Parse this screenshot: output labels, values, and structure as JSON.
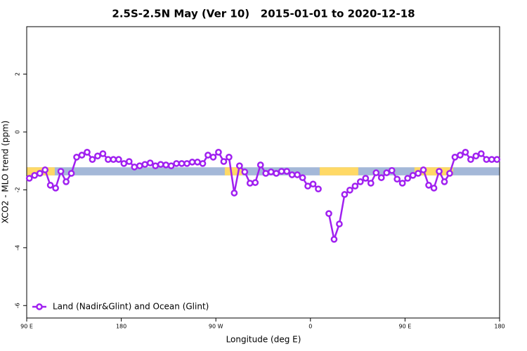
{
  "chart_data": {
    "type": "line",
    "title": "2.5S-2.5N May (Ver 10)   2015-01-01 to 2020-12-18",
    "xlabel": "Longitude (deg E)",
    "ylabel": "XCO2 - MLO trend (ppm)",
    "xlim": [
      90,
      540
    ],
    "ylim": [
      -6.43,
      3.64
    ],
    "xticks": [
      {
        "value": 90,
        "label": "90 E"
      },
      180,
      {
        "value": 270,
        "label": "90 W"
      },
      {
        "value": 360,
        "label": "0"
      },
      {
        "value": 450,
        "label": "90 E"
      },
      {
        "value": 540,
        "label": "180"
      }
    ],
    "yticks": [
      -6,
      -4,
      -2,
      0,
      2
    ],
    "legend": "bottom-left",
    "band": {
      "ylim": [
        -1.5,
        -1.22
      ],
      "color": "#a4b8d8",
      "spans": [
        [
          90,
          116.7
        ],
        [
          278.5,
          295.2
        ],
        [
          368.8,
          405.5
        ],
        [
          459,
          495.8
        ]
      ],
      "span_color": "#ffd966"
    },
    "x": [
      92.5,
      97.5,
      102.5,
      107.5,
      112.5,
      117.5,
      122.5,
      127.5,
      132.5,
      137.5,
      142.5,
      147.5,
      152.5,
      157.5,
      162.5,
      167.5,
      172.5,
      177.5,
      182.5,
      187.5,
      192.5,
      197.5,
      202.5,
      207.5,
      212.5,
      217.5,
      222.5,
      227.5,
      232.5,
      237.5,
      242.5,
      247.5,
      252.5,
      257.5,
      262.5,
      267.5,
      272.5,
      277.5,
      282.5,
      287.5,
      292.5,
      297.5,
      302.5,
      307.5,
      312.5,
      317.5,
      322.5,
      327.5,
      332.5,
      337.5,
      342.5,
      347.5,
      352.5,
      357.5,
      362.5,
      367.5,
      372.5,
      377.5,
      382.5,
      387.5,
      392.5,
      397.5,
      402.5,
      407.5,
      412.5,
      417.5,
      422.5,
      427.5,
      432.5,
      437.5,
      442.5,
      447.5,
      452.5,
      457.5,
      462.5,
      467.5,
      472.5,
      477.5,
      482.5,
      487.5,
      492.5,
      497.5,
      502.5,
      507.5,
      512.5,
      517.5,
      522.5,
      527.5,
      532.5,
      537.5
    ],
    "series": [
      {
        "name": "Land (Nadir&Glint) and Ocean (Glint)",
        "color": "#a020f0",
        "values": [
          -1.6,
          -1.5,
          -1.43,
          -1.31,
          -1.84,
          -1.94,
          -1.36,
          -1.72,
          -1.43,
          -0.87,
          -0.8,
          -0.7,
          -0.95,
          -0.83,
          -0.75,
          -0.95,
          -0.95,
          -0.95,
          -1.09,
          -1.02,
          -1.21,
          -1.17,
          -1.12,
          -1.07,
          -1.17,
          -1.12,
          -1.14,
          -1.17,
          -1.09,
          -1.09,
          -1.09,
          -1.04,
          -1.04,
          -1.09,
          -0.8,
          -0.87,
          -0.7,
          -1.02,
          -0.87,
          -2.11,
          -1.17,
          -1.38,
          -1.77,
          -1.75,
          -1.14,
          -1.43,
          -1.38,
          -1.43,
          -1.36,
          -1.36,
          -1.48,
          -1.48,
          -1.58,
          -1.87,
          -1.8,
          -1.97,
          null,
          -2.82,
          -3.71,
          -3.18,
          -2.16,
          -2.01,
          -1.87,
          -1.72,
          -1.6,
          -1.77,
          -1.41,
          -1.58,
          -1.41,
          -1.33,
          -1.63,
          -1.77,
          -1.6,
          -1.5,
          -1.43,
          -1.31,
          -1.84,
          -1.94,
          -1.36,
          -1.72,
          -1.43,
          -0.87,
          -0.8,
          -0.7,
          -0.95,
          -0.83,
          -0.75,
          -0.95,
          -0.95,
          -0.95
        ]
      }
    ]
  }
}
